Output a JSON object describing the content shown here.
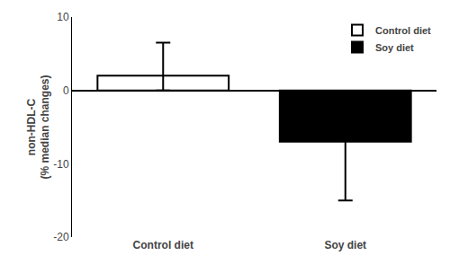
{
  "chart_data": {
    "type": "bar",
    "categories": [
      "Control diet",
      "Soy diet"
    ],
    "values": [
      2.0,
      -7.0
    ],
    "error_up": [
      4.5,
      1.0
    ],
    "error_down": [
      2.0,
      8.0
    ],
    "colors": [
      "#ffffff",
      "#000000"
    ],
    "ylabel": "non-HDL-C\n(% median changes)",
    "ylim": [
      -20,
      10
    ],
    "yticks": [
      -20,
      -10,
      0,
      10
    ],
    "grid": false,
    "legend": "upper right"
  }
}
